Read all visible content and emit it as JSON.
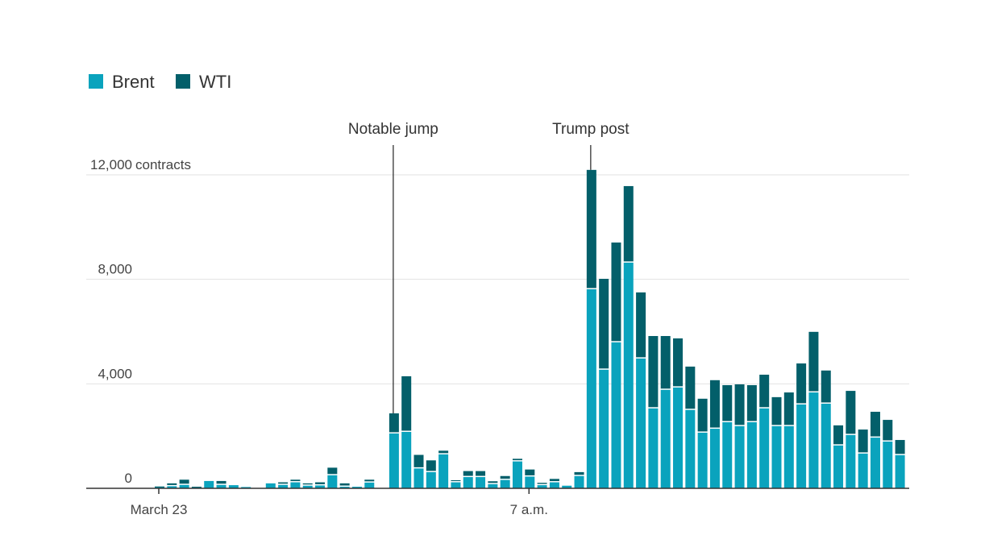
{
  "chart_data": {
    "type": "bar",
    "stacked": true,
    "title": "",
    "xlabel": "",
    "ylabel": "",
    "y_unit_label": "contracts",
    "ylim": [
      0,
      12000
    ],
    "y_ticks": [
      0,
      4000,
      8000,
      12000
    ],
    "y_tick_labels": [
      "0",
      "4,000",
      "8,000",
      "12,000"
    ],
    "grid": true,
    "legend_placement": "top-left",
    "x_ticks": [
      {
        "index": 0,
        "label": "March 23"
      },
      {
        "index": 30,
        "label": "7 a.m."
      }
    ],
    "annotations": [
      {
        "index": 19,
        "label": "Notable jump"
      },
      {
        "index": 35,
        "label": "Trump post"
      }
    ],
    "series": [
      {
        "name": "Brent",
        "color": "#0aa3bd",
        "values": [
          60,
          80,
          130,
          50,
          280,
          130,
          120,
          50,
          0,
          190,
          130,
          230,
          100,
          110,
          500,
          60,
          60,
          220,
          0,
          2100,
          2160,
          760,
          620,
          1300,
          230,
          430,
          430,
          160,
          320,
          1030,
          450,
          120,
          230,
          100,
          470,
          7620,
          4540,
          5590,
          8640,
          4970,
          3060,
          3770,
          3860,
          3000,
          2130,
          2280,
          2530,
          2380,
          2530,
          3060,
          2380,
          2380,
          3210,
          3670,
          3240,
          1640,
          2040,
          1330,
          1940,
          1790,
          1270
        ]
      },
      {
        "name": "WTI",
        "color": "#035f6a",
        "values": [
          10,
          110,
          200,
          10,
          0,
          150,
          0,
          0,
          0,
          0,
          100,
          100,
          90,
          120,
          290,
          130,
          0,
          110,
          0,
          770,
          2130,
          520,
          450,
          140,
          80,
          230,
          230,
          110,
          150,
          100,
          270,
          90,
          130,
          0,
          150,
          4570,
          3480,
          3820,
          2930,
          2530,
          2770,
          2060,
          1880,
          1660,
          1300,
          1860,
          1420,
          1600,
          1420,
          1290,
          1110,
          1290,
          1570,
          2320,
          1270,
          770,
          1690,
          920,
          990,
          830,
          580
        ]
      }
    ]
  }
}
